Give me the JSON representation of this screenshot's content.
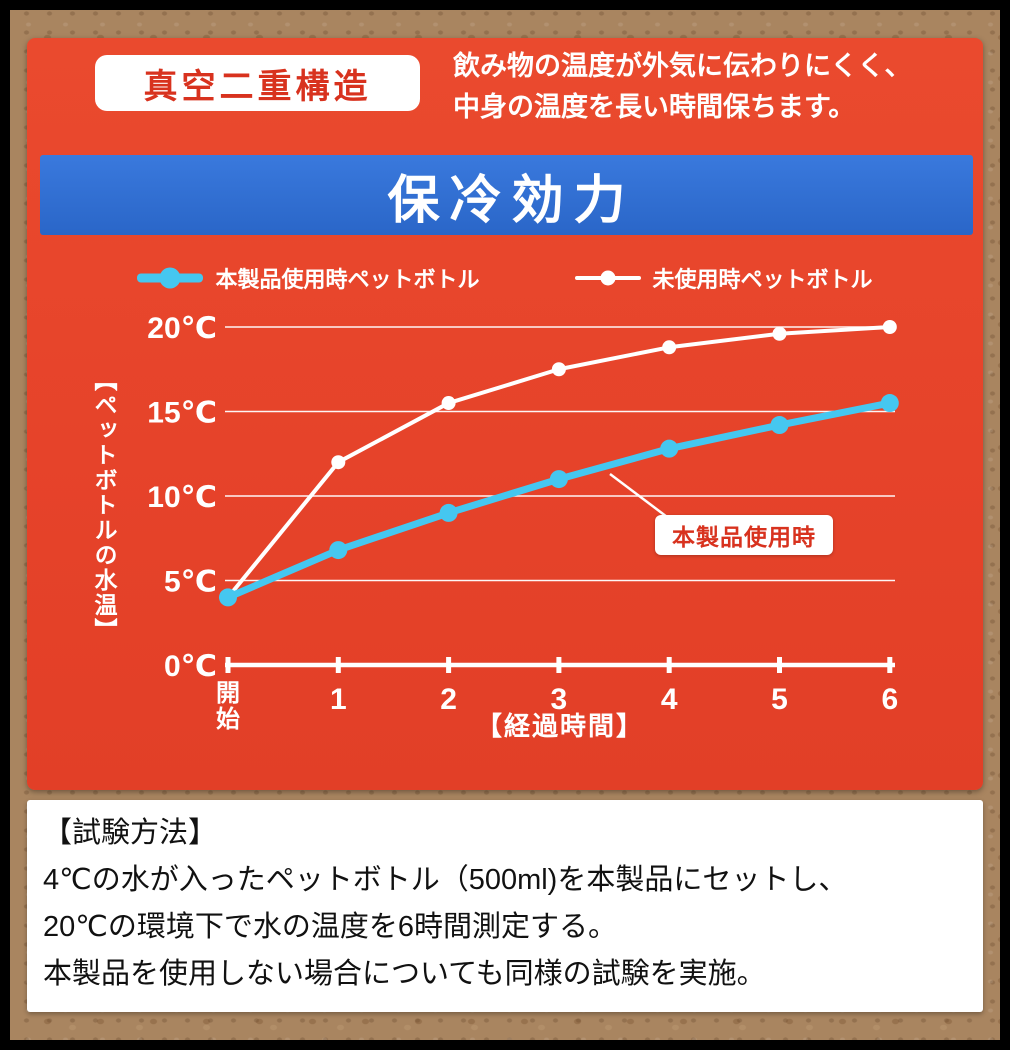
{
  "card": {
    "badge": "真空二重構造",
    "description_line1": "飲み物の温度が外気に伝わりにくく、",
    "description_line2": "中身の温度を長い時間保ちます。",
    "title": "保冷効力"
  },
  "legend": [
    {
      "label": "本製品使用時ペットボトル",
      "color": "#45c7f0"
    },
    {
      "label": "未使用時ペットボトル",
      "color": "#ffffff"
    }
  ],
  "chart_data": {
    "type": "line",
    "x": [
      0,
      1,
      2,
      3,
      4,
      5,
      6
    ],
    "x_tick_labels": [
      "開始",
      "1",
      "2",
      "3",
      "4",
      "5",
      "6"
    ],
    "series": [
      {
        "name": "本製品使用時ペットボトル",
        "color": "#45c7f0",
        "values": [
          4,
          6.8,
          9,
          11,
          12.8,
          14.2,
          15.5
        ]
      },
      {
        "name": "未使用時ペットボトル",
        "color": "#ffffff",
        "values": [
          4,
          12,
          15.5,
          17.5,
          18.8,
          19.6,
          20
        ]
      }
    ],
    "y_ticks": [
      0,
      5,
      10,
      15,
      20
    ],
    "y_tick_suffix": "℃",
    "ylim": [
      0,
      22
    ],
    "ylabel": "【ペットボトルの水温】",
    "xlabel": "【経過時間】",
    "annotation": "本製品使用時",
    "legend_position": "top",
    "grid": true
  },
  "test_method": {
    "lines": [
      "【試験方法】",
      "4℃の水が入ったペットボトル（500ml)を本製品にセットし、",
      "20℃の環境下で水の温度を6時間測定する。",
      "本製品を使用しない場合についても同様の試験を実施。"
    ]
  },
  "colors": {
    "card_red": "#e8452c",
    "banner_blue": "#2e6ed0",
    "series_cyan": "#45c7f0",
    "callout_red": "#d8321e",
    "cork_brown": "#a98560"
  }
}
